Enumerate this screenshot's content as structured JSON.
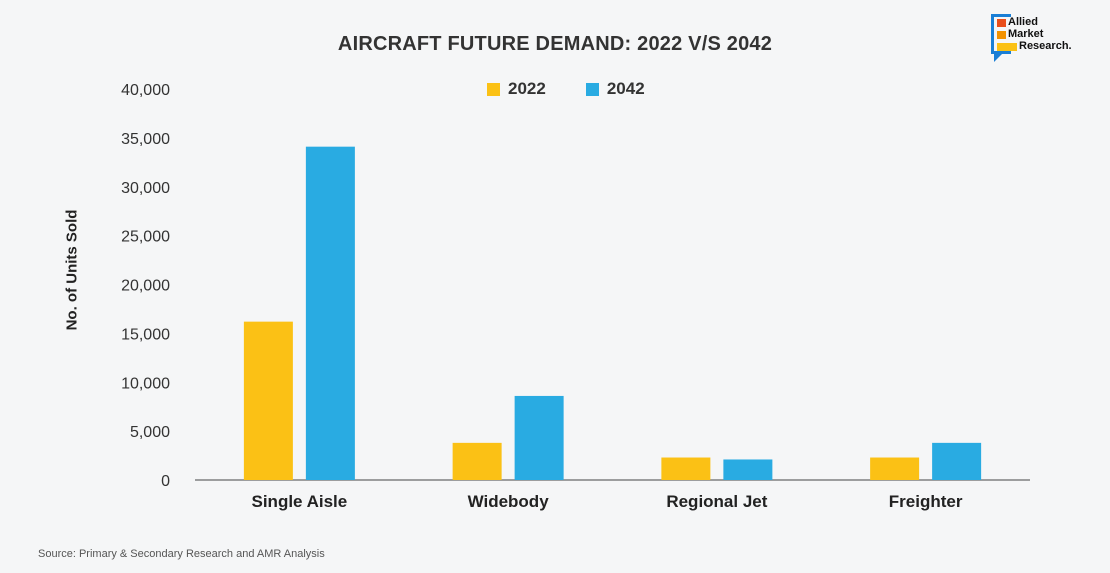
{
  "chart_data": {
    "type": "bar",
    "title": "AIRCRAFT FUTURE DEMAND: 2022 V/S 2042",
    "ylabel": "No. of Units Sold",
    "xlabel": "",
    "categories": [
      "Single Aisle",
      "Widebody",
      "Regional Jet",
      "Freighter"
    ],
    "series": [
      {
        "name": "2022",
        "color": "#fbc115",
        "values": [
          16200,
          3800,
          2300,
          2300
        ]
      },
      {
        "name": "2042",
        "color": "#29abe2",
        "values": [
          34100,
          8600,
          2100,
          3800
        ]
      }
    ],
    "ylim": [
      0,
      40000
    ],
    "yticks": [
      0,
      5000,
      10000,
      15000,
      20000,
      25000,
      30000,
      35000,
      40000
    ],
    "ytick_labels": [
      "0",
      "5,000",
      "10,000",
      "15,000",
      "20,000",
      "25,000",
      "30,000",
      "35,000",
      "40,000"
    ],
    "grid": false,
    "legend_position": "top-center"
  },
  "logo": {
    "lines": [
      "Allied",
      "Market",
      "Research."
    ],
    "colors": [
      "#e94e1b",
      "#f39200",
      "#fbc115"
    ],
    "frame_color": "#1a7fd6"
  },
  "source": "Source: Primary & Secondary Research and AMR Analysis"
}
